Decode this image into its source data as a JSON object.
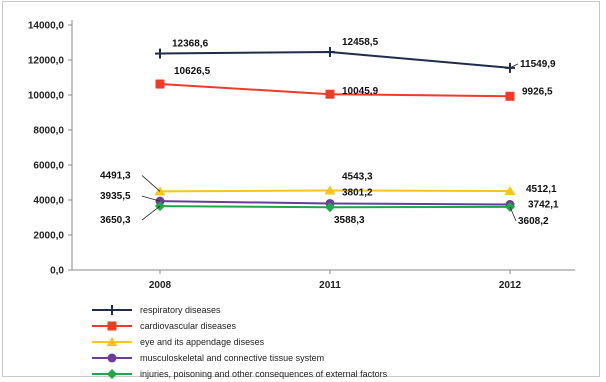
{
  "chart_data": {
    "type": "line",
    "categories": [
      "2008",
      "2011",
      "2012"
    ],
    "ylim": [
      0,
      14000
    ],
    "yticks": [
      "0,0",
      "2000,0",
      "4000,0",
      "6000,0",
      "8000,0",
      "10000,0",
      "12000,0",
      "14000,0"
    ],
    "ytick_values": [
      0,
      2000,
      4000,
      6000,
      8000,
      10000,
      12000,
      14000
    ],
    "grid": false,
    "legend_position": "bottom",
    "series": [
      {
        "name": "respiratory diseases",
        "values": [
          12368.6,
          12458.5,
          11549.9
        ],
        "labels": [
          "12368,6",
          "12458,5",
          "11549,9"
        ],
        "color": "#1f2d4a",
        "marker": "cross"
      },
      {
        "name": "cardiovascular diseases",
        "values": [
          10626.5,
          10045.9,
          9926.5
        ],
        "labels": [
          "10626,5",
          "10045,9",
          "9926,5"
        ],
        "color": "#ee3b2a",
        "marker": "square"
      },
      {
        "name": "eye and its appendage diseses",
        "values": [
          4491.3,
          4543.3,
          4512.1
        ],
        "labels": [
          "4491,3",
          "4543,3",
          "4512,1"
        ],
        "color": "#f5c518",
        "marker": "triangle"
      },
      {
        "name": "musculoskeletal and connective tissue system",
        "values": [
          3935.5,
          3801.2,
          3742.1
        ],
        "labels": [
          "3935,5",
          "3801,2",
          "3742,1"
        ],
        "color": "#6a3d9a",
        "marker": "circle"
      },
      {
        "name": "injuries, poisoning and other consequences of external factors",
        "values": [
          3650.3,
          3588.3,
          3608.2
        ],
        "labels": [
          "3650,3",
          "3588,3",
          "3608,2"
        ],
        "color": "#1fa84a",
        "marker": "diamond"
      }
    ]
  }
}
